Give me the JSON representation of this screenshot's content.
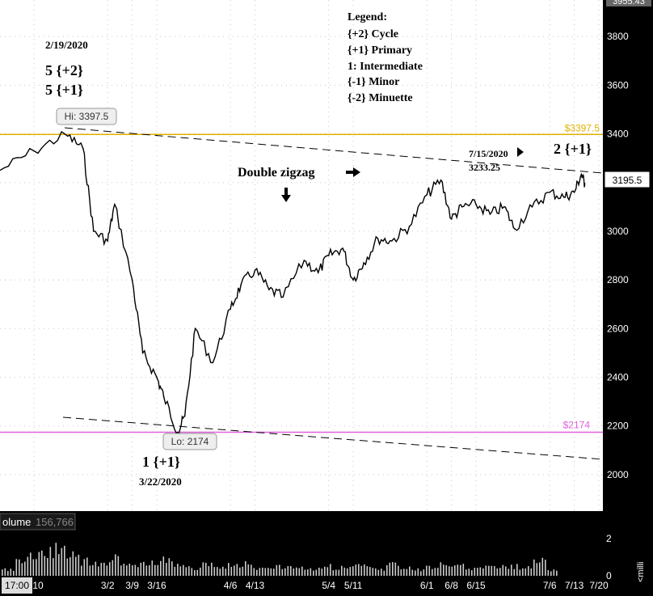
{
  "chart_data": {
    "type": "line",
    "series": [
      {
        "x": [
          "2/10",
          "2/19",
          "2/24",
          "2/27",
          "3/2",
          "3/4",
          "3/9",
          "3/12",
          "3/16",
          "3/18",
          "3/22",
          "3/24",
          "3/27",
          "4/1",
          "4/6",
          "4/9",
          "4/13",
          "4/17",
          "4/21",
          "4/27",
          "5/1",
          "5/4",
          "5/8",
          "5/11",
          "5/14",
          "5/18",
          "5/22",
          "5/27",
          "6/1",
          "6/5",
          "6/8",
          "6/11",
          "6/15",
          "6/19",
          "6/23",
          "6/26",
          "7/1",
          "7/6",
          "7/10",
          "7/13",
          "7/15",
          "7/16"
        ],
        "values": [
          3330,
          3397.5,
          3340,
          3000,
          2960,
          3110,
          2800,
          2500,
          2400,
          2320,
          2174,
          2240,
          2600,
          2460,
          2680,
          2780,
          2840,
          2760,
          2730,
          2880,
          2830,
          2900,
          2930,
          2800,
          2870,
          2970,
          2960,
          3020,
          3150,
          3210,
          3050,
          3100,
          3110,
          3070,
          3100,
          3010,
          3100,
          3160,
          3140,
          3160,
          3233.25,
          3195.5
        ]
      },
      {
        "values": [
          4,
          9,
          12,
          15,
          19,
          15,
          9,
          7,
          11,
          6,
          7,
          8,
          10,
          6,
          5,
          7,
          5,
          7,
          8,
          5,
          6,
          6,
          5,
          4,
          6,
          5,
          6,
          6,
          4,
          8,
          5,
          4,
          5,
          7,
          6,
          4,
          5,
          6,
          6,
          5,
          9,
          4
        ]
      }
    ],
    "ylim": [
      1850,
      3950
    ],
    "yticks": [
      "2000",
      "2200",
      "2400",
      "2600",
      "2800",
      "3000",
      "3200",
      "3400",
      "3600",
      "3800"
    ],
    "volume_yticks": [
      "2",
      "0"
    ],
    "xticks": [
      "2/10",
      "3/2",
      "3/9",
      "3/16",
      "4/6",
      "4/13",
      "5/4",
      "5/11",
      "6/1",
      "6/8",
      "6/15",
      "7/6",
      "7/13",
      "7/20"
    ],
    "x_start_label": "17:00",
    "top_right_label": "3955.43",
    "price_tag": "3195.5",
    "volume_label": "olume",
    "volume_value": "156,766",
    "volume_axis_unit": "<milli",
    "grid": true,
    "hline_high": {
      "value": 3397.5,
      "label": "$3397.5",
      "color": "#e0b100"
    },
    "hline_low": {
      "value": 2174,
      "label": "$2174",
      "color": "#e060e0"
    },
    "hi_bubble": "Hi: 3397.5",
    "lo_bubble": "Lo: 2174",
    "annotations": {
      "date_top": "2/19/2020",
      "wave_top_1": "5 {+2}",
      "wave_top_2": "5 {+1}",
      "bottom_wave": "1 {+1}",
      "bottom_date": "3/22/2020",
      "double_zigzag": "Double zigzag",
      "jul_date": "7/15/2020",
      "jul_value": "3233.25",
      "wave_right": "2 {+1}"
    },
    "legend": {
      "title": "Legend:",
      "items": [
        "{+2} Cycle",
        "{+1} Primary",
        "1: Intermediate",
        "{-1} Minor",
        "{-2} Minuette"
      ]
    },
    "colors": {
      "price": "#000000",
      "grid": "#c8c8c8",
      "axis_bg": "#000000",
      "volume": "#cccccc"
    }
  }
}
